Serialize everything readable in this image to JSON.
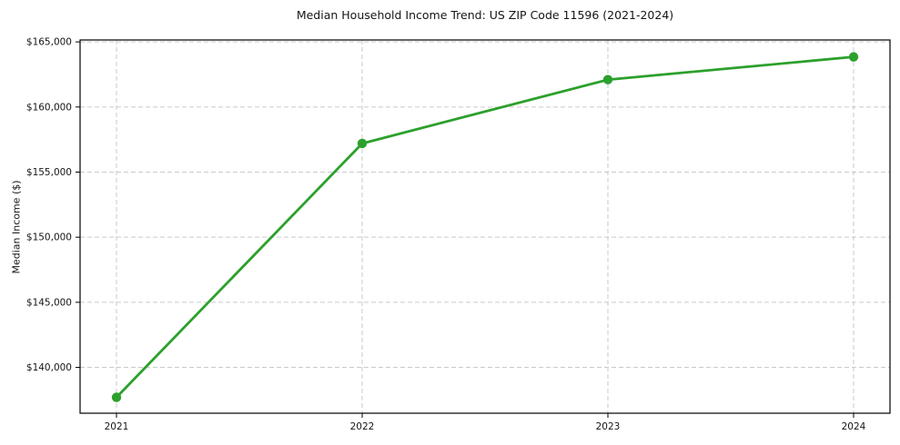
{
  "chart_data": {
    "type": "line",
    "title": "Median Household Income Trend: US ZIP Code 11596 (2021-2024)",
    "xlabel": "",
    "ylabel": "Median Income ($)",
    "categories": [
      2021,
      2022,
      2023,
      2024
    ],
    "x_tick_labels": [
      "2021",
      "2022",
      "2023",
      "2024"
    ],
    "series": [
      {
        "name": "Median Income",
        "values": [
          137700,
          157200,
          162100,
          163850
        ]
      }
    ],
    "y_ticks": [
      140000,
      145000,
      150000,
      155000,
      160000,
      165000
    ],
    "y_tick_labels": [
      "$140,000",
      "$145,000",
      "$150,000",
      "$155,000",
      "$160,000",
      "$165,000"
    ],
    "ylim": [
      136480,
      165150
    ],
    "grid": true,
    "grid_style": "dashed",
    "legend_position": "none",
    "colors": {
      "line": "#2ca02c",
      "marker": "#2ca02c",
      "grid": "#c9c9c9",
      "spine": "#000000",
      "text": "#151515",
      "background": "#ffffff"
    }
  }
}
